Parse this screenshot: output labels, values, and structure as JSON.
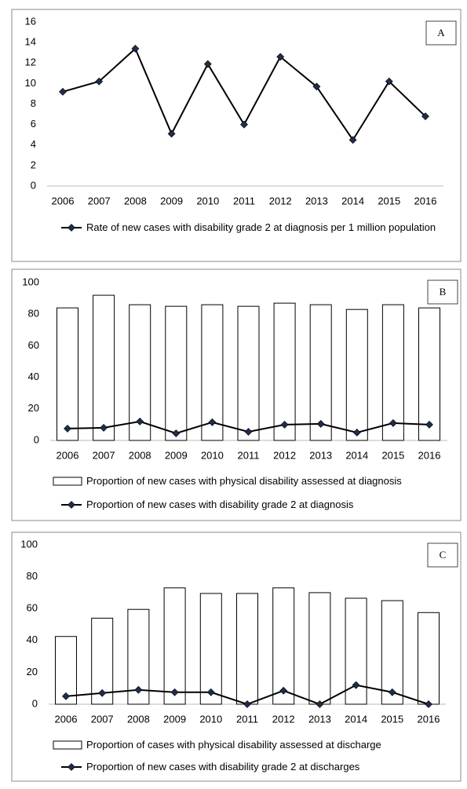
{
  "chart_data": [
    {
      "type": "combo",
      "annotation": "A",
      "categories": [
        "2006",
        "2007",
        "2008",
        "2009",
        "2010",
        "2011",
        "2012",
        "2013",
        "2014",
        "2015",
        "2016"
      ],
      "series": [
        {
          "name": "Rate of new cases with disability grade 2 at diagnosis per 1 million population",
          "type": "line",
          "color": "#000000",
          "marker_color": "#1f2d4d",
          "values": [
            9.2,
            10.2,
            13.4,
            5.1,
            11.9,
            6.0,
            12.6,
            9.7,
            4.5,
            10.2,
            6.8
          ]
        }
      ],
      "ylim": [
        0,
        16
      ],
      "yticks": [
        0,
        2,
        4,
        6,
        8,
        10,
        12,
        14,
        16
      ]
    },
    {
      "type": "combo",
      "annotation": "B",
      "categories": [
        "2006",
        "2007",
        "2008",
        "2009",
        "2010",
        "2011",
        "2012",
        "2013",
        "2014",
        "2015",
        "2016"
      ],
      "series": [
        {
          "name": "Proportion of new cases with physical disability assessed at diagnosis",
          "type": "bar",
          "color": "#ffffff",
          "values": [
            84,
            92,
            86,
            85,
            86,
            85,
            87,
            86,
            83,
            86,
            84
          ]
        },
        {
          "name": "Proportion of new cases with disability grade 2 at diagnosis",
          "type": "line",
          "color": "#000000",
          "marker_color": "#1f2d4d",
          "values": [
            7.5,
            8,
            12,
            4.5,
            11.5,
            5.5,
            10,
            10.5,
            5,
            11,
            10
          ]
        }
      ],
      "ylim": [
        0,
        100
      ],
      "yticks": [
        0,
        20,
        40,
        60,
        80,
        100
      ]
    },
    {
      "type": "combo",
      "annotation": "C",
      "categories": [
        "2006",
        "2007",
        "2008",
        "2009",
        "2010",
        "2011",
        "2012",
        "2013",
        "2014",
        "2015",
        "2016"
      ],
      "series": [
        {
          "name": "Proportion of cases with physical disability assessed at discharge",
          "type": "bar",
          "color": "#ffffff",
          "values": [
            42.5,
            54,
            59.5,
            73,
            69.5,
            69.5,
            73,
            70,
            66.5,
            65,
            57.5
          ]
        },
        {
          "name": "Proportion of new cases with disability grade 2 at discharges",
          "type": "line",
          "color": "#000000",
          "marker_color": "#1f2d4d",
          "values": [
            5,
            7,
            9,
            7.5,
            7.5,
            0,
            8.5,
            0,
            12,
            7.5,
            0
          ]
        }
      ],
      "ylim": [
        0,
        100
      ],
      "yticks": [
        0,
        20,
        40,
        60,
        80,
        100
      ]
    }
  ]
}
